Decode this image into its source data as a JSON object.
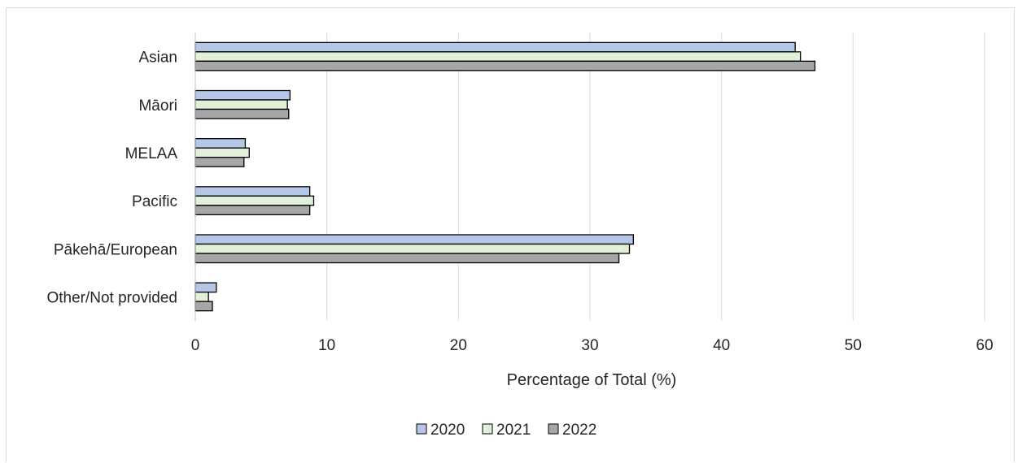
{
  "chart_data": {
    "type": "bar",
    "orientation": "horizontal",
    "categories": [
      "Asian",
      "Māori",
      "MELAA",
      "Pacific",
      "Pākehā/European",
      "Other/Not provided"
    ],
    "series": [
      {
        "name": "2020",
        "color": "#b4c7e7",
        "values": [
          45.6,
          7.2,
          3.8,
          8.7,
          33.3,
          1.6
        ]
      },
      {
        "name": "2021",
        "color": "#e2f0d9",
        "values": [
          46.0,
          7.0,
          4.1,
          9.0,
          33.0,
          1.0
        ]
      },
      {
        "name": "2022",
        "color": "#a6a6a6",
        "values": [
          47.1,
          7.1,
          3.7,
          8.7,
          32.2,
          1.3
        ]
      }
    ],
    "xlabel": "Percentage of Total (%)",
    "ylabel": "",
    "xlim": [
      0,
      60
    ],
    "xticks": [
      "0",
      "10",
      "20",
      "30",
      "40",
      "50",
      "60"
    ],
    "grid": true,
    "legend_position": "bottom"
  }
}
